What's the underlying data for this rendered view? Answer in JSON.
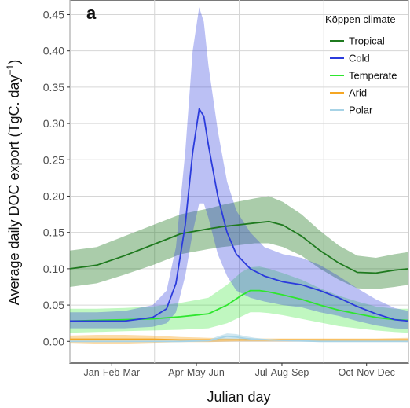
{
  "chart_data": {
    "type": "line",
    "panel_label": "a",
    "xlabel": "Julian day",
    "ylabel": "Average daily DOC export (TgC. day",
    "ylabel_sup": "−1",
    "ylabel_close": ")",
    "xlim": [
      1,
      365
    ],
    "ylim": [
      -0.03,
      0.47
    ],
    "yticks": [
      0.0,
      0.05,
      0.1,
      0.15,
      0.2,
      0.25,
      0.3,
      0.35,
      0.4,
      0.45
    ],
    "ytick_labels": [
      "0.00",
      "0.05",
      "0.10",
      "0.15",
      "0.20",
      "0.25",
      "0.30",
      "0.35",
      "0.40",
      "0.45"
    ],
    "x_category_labels": [
      {
        "label": "Jan-Feb-Mar",
        "x": 46
      },
      {
        "label": "Apr-May-Jun",
        "x": 137
      },
      {
        "label": "Jul-Aug-Sep",
        "x": 229
      },
      {
        "label": "Oct-Nov-Dec",
        "x": 320
      }
    ],
    "x_gridlines": [
      1,
      92,
      183,
      274,
      365
    ],
    "grid": true,
    "legend": {
      "title": "Köppen climate",
      "placement": "top-right"
    },
    "series": [
      {
        "name": "Tropical",
        "color": "#1f7a1f",
        "x": [
          1,
          30,
          60,
          90,
          120,
          150,
          165,
          180,
          200,
          215,
          230,
          250,
          270,
          290,
          310,
          330,
          350,
          365
        ],
        "y": [
          0.1,
          0.105,
          0.118,
          0.133,
          0.148,
          0.155,
          0.158,
          0.16,
          0.163,
          0.165,
          0.16,
          0.145,
          0.125,
          0.108,
          0.095,
          0.094,
          0.098,
          0.1
        ],
        "upper": [
          0.125,
          0.13,
          0.145,
          0.16,
          0.175,
          0.183,
          0.188,
          0.192,
          0.197,
          0.2,
          0.192,
          0.175,
          0.152,
          0.132,
          0.118,
          0.115,
          0.12,
          0.123
        ],
        "lower": [
          0.075,
          0.08,
          0.092,
          0.105,
          0.12,
          0.127,
          0.13,
          0.132,
          0.135,
          0.135,
          0.13,
          0.118,
          0.1,
          0.085,
          0.073,
          0.072,
          0.075,
          0.078
        ]
      },
      {
        "name": "Cold",
        "color": "#2b3bdc",
        "x": [
          1,
          30,
          60,
          90,
          105,
          115,
          125,
          133,
          140,
          145,
          150,
          160,
          170,
          180,
          195,
          210,
          230,
          250,
          270,
          290,
          310,
          330,
          350,
          365
        ],
        "y": [
          0.028,
          0.028,
          0.028,
          0.033,
          0.045,
          0.08,
          0.16,
          0.26,
          0.32,
          0.31,
          0.27,
          0.2,
          0.15,
          0.12,
          0.1,
          0.09,
          0.082,
          0.078,
          0.07,
          0.06,
          0.048,
          0.038,
          0.03,
          0.028
        ],
        "upper": [
          0.04,
          0.04,
          0.042,
          0.05,
          0.07,
          0.13,
          0.26,
          0.4,
          0.46,
          0.44,
          0.38,
          0.29,
          0.22,
          0.18,
          0.15,
          0.13,
          0.12,
          0.115,
          0.105,
          0.09,
          0.073,
          0.058,
          0.046,
          0.042
        ],
        "lower": [
          0.018,
          0.018,
          0.018,
          0.02,
          0.025,
          0.04,
          0.09,
          0.15,
          0.19,
          0.19,
          0.17,
          0.12,
          0.09,
          0.07,
          0.06,
          0.055,
          0.05,
          0.047,
          0.04,
          0.035,
          0.028,
          0.022,
          0.018,
          0.017
        ]
      },
      {
        "name": "Temperate",
        "color": "#2ee62e",
        "x": [
          1,
          30,
          60,
          90,
          120,
          150,
          170,
          185,
          195,
          205,
          215,
          230,
          250,
          270,
          290,
          310,
          330,
          350,
          365
        ],
        "y": [
          0.028,
          0.029,
          0.03,
          0.031,
          0.034,
          0.038,
          0.05,
          0.063,
          0.07,
          0.07,
          0.068,
          0.064,
          0.058,
          0.05,
          0.043,
          0.038,
          0.033,
          0.03,
          0.029
        ],
        "upper": [
          0.045,
          0.045,
          0.046,
          0.048,
          0.053,
          0.06,
          0.078,
          0.095,
          0.102,
          0.103,
          0.1,
          0.094,
          0.085,
          0.073,
          0.063,
          0.055,
          0.048,
          0.045,
          0.045
        ],
        "lower": [
          0.012,
          0.013,
          0.014,
          0.015,
          0.016,
          0.018,
          0.025,
          0.034,
          0.04,
          0.04,
          0.039,
          0.036,
          0.031,
          0.026,
          0.021,
          0.018,
          0.015,
          0.013,
          0.012
        ]
      },
      {
        "name": "Arid",
        "color": "#f5a623",
        "x": [
          1,
          30,
          60,
          90,
          120,
          150,
          180,
          210,
          240,
          270,
          300,
          330,
          365
        ],
        "y": [
          0.003,
          0.003,
          0.003,
          0.003,
          0.002,
          0.002,
          0.002,
          0.002,
          0.002,
          0.002,
          0.002,
          0.002,
          0.002
        ],
        "upper": [
          0.008,
          0.009,
          0.009,
          0.008,
          0.006,
          0.005,
          0.004,
          0.004,
          0.004,
          0.004,
          0.004,
          0.004,
          0.005
        ],
        "lower": [
          -0.002,
          -0.003,
          -0.003,
          -0.002,
          -0.001,
          -0.001,
          0.0,
          0.0,
          0.0,
          0.0,
          0.0,
          0.0,
          -0.001
        ]
      },
      {
        "name": "Polar",
        "color": "#a7d3e6",
        "x": [
          1,
          120,
          150,
          160,
          170,
          180,
          190,
          200,
          215,
          240,
          270,
          365
        ],
        "y": [
          0.0,
          0.0,
          0.001,
          0.004,
          0.007,
          0.006,
          0.004,
          0.003,
          0.002,
          0.001,
          0.0,
          0.0
        ],
        "upper": [
          0.0,
          0.0,
          0.002,
          0.007,
          0.011,
          0.01,
          0.007,
          0.005,
          0.003,
          0.002,
          0.0,
          0.0
        ],
        "lower": [
          0.0,
          0.0,
          0.0,
          0.001,
          0.003,
          0.002,
          0.001,
          0.001,
          0.001,
          0.0,
          0.0,
          0.0
        ]
      }
    ]
  }
}
